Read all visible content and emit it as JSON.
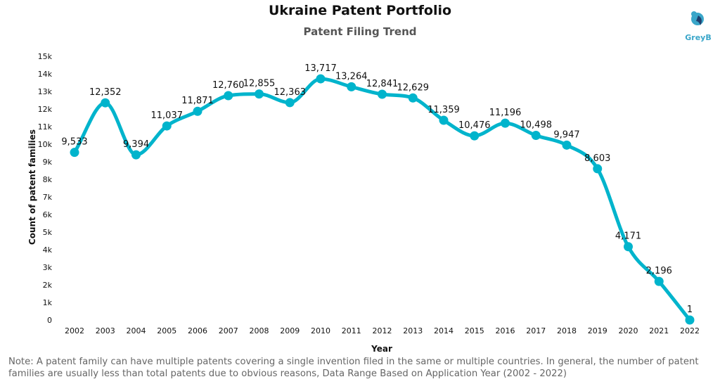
{
  "logo": {
    "text": "GreyB",
    "color": "#3aa6c9"
  },
  "colors": {
    "line": "#00b4cc",
    "marker": "#00b4cc"
  },
  "note": "Note: A patent family can have multiple patents covering a single invention filed in the same or multiple countries. In general, the number of patent families are usually less than total patents due to obvious reasons, Data Range Based on Application Year (2002 - 2022)",
  "chart_data": {
    "type": "line",
    "title": "Ukraine Patent Portfolio",
    "subtitle": "Patent Filing Trend",
    "xlabel": "Year",
    "ylabel": "Count of patent families",
    "ylim": [
      0,
      15000
    ],
    "yticks": [
      0,
      1000,
      2000,
      3000,
      4000,
      5000,
      6000,
      7000,
      8000,
      9000,
      10000,
      11000,
      12000,
      13000,
      14000,
      15000
    ],
    "ytick_labels": [
      "0",
      "1k",
      "2k",
      "3k",
      "4k",
      "5k",
      "6k",
      "7k",
      "8k",
      "9k",
      "10k",
      "11k",
      "12k",
      "13k",
      "14k",
      "15k"
    ],
    "grid": false,
    "legend": "none",
    "smooth": true,
    "categories": [
      "2002",
      "2003",
      "2004",
      "2005",
      "2006",
      "2007",
      "2008",
      "2009",
      "2010",
      "2011",
      "2012",
      "2013",
      "2014",
      "2015",
      "2016",
      "2017",
      "2018",
      "2019",
      "2020",
      "2021",
      "2022"
    ],
    "values": [
      9533,
      12352,
      9394,
      11037,
      11871,
      12760,
      12855,
      12363,
      13717,
      13264,
      12841,
      12629,
      11359,
      10476,
      11196,
      10498,
      9947,
      8603,
      4171,
      2196,
      1
    ],
    "labels": [
      "9,533",
      "12,352",
      "9,394",
      "11,037",
      "11,871",
      "12,760",
      "12,855",
      "12,363",
      "13,717",
      "13,264",
      "12,841",
      "12,629",
      "11,359",
      "10,476",
      "11,196",
      "10,498",
      "9,947",
      "8,603",
      "4,171",
      "2,196",
      "1"
    ]
  }
}
